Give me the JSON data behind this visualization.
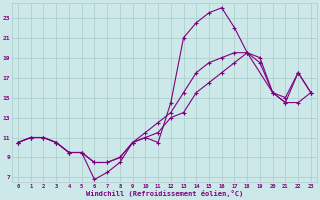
{
  "xlabel": "Windchill (Refroidissement éolien,°C)",
  "background_color": "#cce8e8",
  "grid_color": "#aacccc",
  "line_color": "#800080",
  "xlim": [
    -0.5,
    23.5
  ],
  "ylim": [
    6.5,
    24.5
  ],
  "xticks": [
    0,
    1,
    2,
    3,
    4,
    5,
    6,
    7,
    8,
    9,
    10,
    11,
    12,
    13,
    14,
    15,
    16,
    17,
    18,
    19,
    20,
    21,
    22,
    23
  ],
  "yticks": [
    7,
    9,
    11,
    13,
    15,
    17,
    19,
    21,
    23
  ],
  "lines": [
    {
      "x": [
        0,
        1,
        2,
        3,
        4,
        5,
        6,
        7,
        8,
        9,
        10,
        11,
        12,
        13,
        14,
        15,
        16,
        17,
        18,
        20,
        21,
        22,
        23
      ],
      "y": [
        10.5,
        11.0,
        11.0,
        10.5,
        9.5,
        9.5,
        8.5,
        8.5,
        9.0,
        10.5,
        11.0,
        10.5,
        14.5,
        21.0,
        22.5,
        23.5,
        24.0,
        22.0,
        19.5,
        15.5,
        15.0,
        17.5,
        15.5
      ]
    },
    {
      "x": [
        0,
        1,
        2,
        3,
        4,
        5,
        6,
        7,
        8,
        9,
        10,
        11,
        12,
        13,
        14,
        15,
        16,
        17,
        18,
        19,
        20,
        21,
        22,
        23
      ],
      "y": [
        10.5,
        11.0,
        11.0,
        10.5,
        9.5,
        9.5,
        8.5,
        8.5,
        9.0,
        10.5,
        11.5,
        12.5,
        13.5,
        15.5,
        17.5,
        18.5,
        19.0,
        19.5,
        19.5,
        18.5,
        15.5,
        14.5,
        17.5,
        15.5
      ]
    },
    {
      "x": [
        0,
        1,
        2,
        3,
        4,
        5,
        6,
        7,
        8,
        9,
        10,
        11,
        12,
        13,
        14,
        15,
        16,
        17,
        18,
        19,
        20,
        21,
        22,
        23
      ],
      "y": [
        10.5,
        11.0,
        11.0,
        10.5,
        9.5,
        9.5,
        6.8,
        7.5,
        8.5,
        10.5,
        11.0,
        11.5,
        13.0,
        13.5,
        15.5,
        16.5,
        17.5,
        18.5,
        19.5,
        19.0,
        15.5,
        14.5,
        14.5,
        15.5
      ]
    }
  ]
}
